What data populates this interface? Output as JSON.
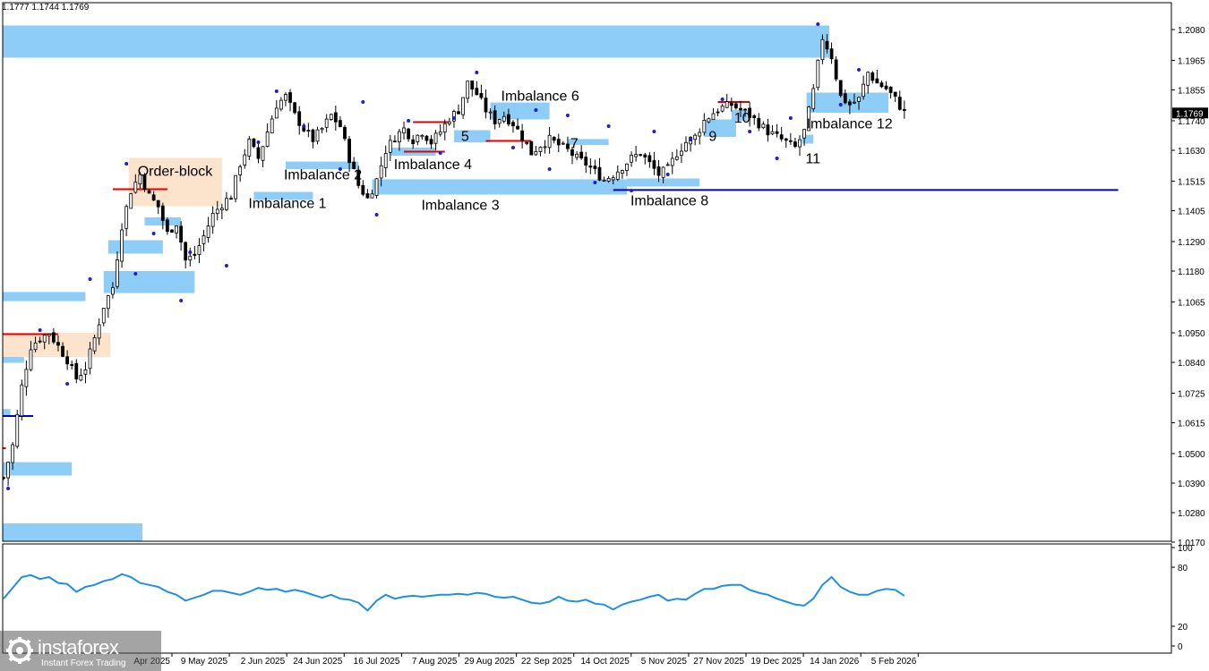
{
  "header": {
    "ohlc": "1.1777 1.1744 1.1769"
  },
  "colors": {
    "imbalance": "#8ecdf8",
    "order_block": "#fbe3cc",
    "candle": "#000000",
    "fractal_up": "#1d1dd8",
    "level_red": "#e00000",
    "level_blue": "#0000c8",
    "rsi": "#1e90e0",
    "price_tag_bg": "#000000",
    "grid_frame": "#000000"
  },
  "chart_data": [
    {
      "type": "candlestick",
      "title": "",
      "price_axis": {
        "ticks": [
          "1.2080",
          "1.1965",
          "1.1855",
          "1.1740",
          "1.1630",
          "1.1515",
          "1.1405",
          "1.1290",
          "1.1180",
          "1.1065",
          "1.0950",
          "1.0840",
          "1.0725",
          "1.0615",
          "1.0500",
          "1.0390",
          "1.0280",
          "1.0170"
        ],
        "ylim": [
          1.016,
          1.2155
        ],
        "current_price": "1.1769"
      },
      "x_axis": {
        "ticks": [
          "Apr 2025",
          "9 May 2025",
          "2 Jun 2025",
          "24 Jun 2025",
          "16 Jul 2025",
          "7 Aug 2025",
          "29 Aug 2025",
          "22 Sep 2025",
          "14 Oct 2025",
          "5 Nov 2025",
          "27 Nov 2025",
          "19 Dec 2025",
          "14 Jan 2026",
          "5 Feb 2026"
        ]
      },
      "close_path": [
        [
          0,
          1.041
        ],
        [
          2,
          1.053
        ],
        [
          4,
          1.075
        ],
        [
          6,
          1.09
        ],
        [
          8,
          1.093
        ],
        [
          10,
          1.095
        ],
        [
          12,
          1.09
        ],
        [
          14,
          1.085
        ],
        [
          16,
          1.078
        ],
        [
          18,
          1.082
        ],
        [
          20,
          1.093
        ],
        [
          22,
          1.105
        ],
        [
          24,
          1.112
        ],
        [
          26,
          1.135
        ],
        [
          28,
          1.148
        ],
        [
          30,
          1.154
        ],
        [
          32,
          1.146
        ],
        [
          34,
          1.142
        ],
        [
          36,
          1.132
        ],
        [
          38,
          1.136
        ],
        [
          40,
          1.122
        ],
        [
          42,
          1.124
        ],
        [
          44,
          1.131
        ],
        [
          46,
          1.139
        ],
        [
          48,
          1.143
        ],
        [
          50,
          1.146
        ],
        [
          52,
          1.158
        ],
        [
          54,
          1.166
        ],
        [
          56,
          1.16
        ],
        [
          58,
          1.17
        ],
        [
          60,
          1.18
        ],
        [
          62,
          1.183
        ],
        [
          64,
          1.176
        ],
        [
          66,
          1.171
        ],
        [
          68,
          1.167
        ],
        [
          70,
          1.171
        ],
        [
          72,
          1.176
        ],
        [
          74,
          1.172
        ],
        [
          76,
          1.16
        ],
        [
          78,
          1.15
        ],
        [
          80,
          1.145
        ],
        [
          82,
          1.152
        ],
        [
          84,
          1.163
        ],
        [
          86,
          1.168
        ],
        [
          88,
          1.171
        ],
        [
          90,
          1.167
        ],
        [
          92,
          1.17
        ],
        [
          94,
          1.166
        ],
        [
          96,
          1.17
        ],
        [
          98,
          1.175
        ],
        [
          100,
          1.178
        ],
        [
          102,
          1.188
        ],
        [
          104,
          1.184
        ],
        [
          106,
          1.178
        ],
        [
          108,
          1.174
        ],
        [
          110,
          1.176
        ],
        [
          112,
          1.173
        ],
        [
          114,
          1.168
        ],
        [
          116,
          1.162
        ],
        [
          118,
          1.165
        ],
        [
          120,
          1.167
        ],
        [
          122,
          1.165
        ],
        [
          124,
          1.163
        ],
        [
          126,
          1.16
        ],
        [
          128,
          1.158
        ],
        [
          130,
          1.155
        ],
        [
          132,
          1.152
        ],
        [
          134,
          1.154
        ],
        [
          136,
          1.157
        ],
        [
          138,
          1.16
        ],
        [
          140,
          1.162
        ],
        [
          142,
          1.158
        ],
        [
          144,
          1.154
        ],
        [
          146,
          1.156
        ],
        [
          148,
          1.162
        ],
        [
          150,
          1.166
        ],
        [
          152,
          1.168
        ],
        [
          154,
          1.174
        ],
        [
          156,
          1.177
        ],
        [
          158,
          1.179
        ],
        [
          160,
          1.18
        ],
        [
          162,
          1.178
        ],
        [
          164,
          1.176
        ],
        [
          166,
          1.173
        ],
        [
          168,
          1.17
        ],
        [
          170,
          1.168
        ],
        [
          172,
          1.166
        ],
        [
          174,
          1.164
        ],
        [
          176,
          1.17
        ],
        [
          178,
          1.185
        ],
        [
          180,
          1.205
        ],
        [
          182,
          1.198
        ],
        [
          184,
          1.183
        ],
        [
          186,
          1.18
        ],
        [
          188,
          1.182
        ],
        [
          190,
          1.192
        ],
        [
          192,
          1.188
        ],
        [
          194,
          1.186
        ],
        [
          196,
          1.182
        ],
        [
          198,
          1.177
        ]
      ],
      "zones": [
        {
          "kind": "imbalance",
          "label": "",
          "p_top": 1.2095,
          "p_bot": 1.1975,
          "d0": -2,
          "d1": 181.5
        },
        {
          "kind": "imbalance",
          "label": "",
          "p_top": 1.024,
          "p_bot": 1.013,
          "d0": -2,
          "d1": 30.5
        },
        {
          "kind": "imbalance",
          "label": "",
          "p_top": 1.0468,
          "p_bot": 1.0418,
          "d0": -2,
          "d1": 15
        },
        {
          "kind": "imbalance",
          "label": "",
          "p_top": 1.0666,
          "p_bot": 1.0642,
          "d0": -2,
          "d1": 1.5
        },
        {
          "kind": "imbalance",
          "label": "",
          "p_top": 1.0882,
          "p_bot": 1.0838,
          "d0": -2,
          "d1": 4.5
        },
        {
          "kind": "imbalance",
          "label": "",
          "p_top": 1.1102,
          "p_bot": 1.1068,
          "d0": -2,
          "d1": 18
        },
        {
          "kind": "imbalance",
          "label": "",
          "p_top": 1.118,
          "p_bot": 1.1098,
          "d0": 22,
          "d1": 42
        },
        {
          "kind": "imbalance",
          "label": "",
          "p_top": 1.1295,
          "p_bot": 1.1245,
          "d0": 23,
          "d1": 35
        },
        {
          "kind": "imbalance",
          "label": "",
          "p_top": 1.138,
          "p_bot": 1.135,
          "d0": 31,
          "d1": 39
        },
        {
          "kind": "order_block",
          "label": "",
          "p_top": 1.095,
          "p_bot": 1.086,
          "d0": -2,
          "d1": 23.5
        },
        {
          "kind": "order_block",
          "label": "Order-block",
          "p_top": 1.1602,
          "p_bot": 1.1422,
          "d0": 27.5,
          "d1": 48
        }
      ],
      "labeled_zones": [
        {
          "kind": "imbalance",
          "label": "Imbalance 1",
          "p_top": 1.1475,
          "p_bot": 1.1445,
          "d0": 55,
          "d1": 68
        },
        {
          "kind": "imbalance",
          "label": "Imbalance 2",
          "p_top": 1.1588,
          "p_bot": 1.156,
          "d0": 62,
          "d1": 78
        },
        {
          "kind": "imbalance",
          "label": "Imbalance 3",
          "p_top": 1.1522,
          "p_bot": 1.1465,
          "d0": 81,
          "d1": 137
        },
        {
          "kind": "imbalance",
          "label": "Imbalance 4",
          "p_top": 1.164,
          "p_bot": 1.161,
          "d0": 85,
          "d1": 95
        },
        {
          "kind": "imbalance",
          "label": "5",
          "p_top": 1.1705,
          "p_bot": 1.166,
          "d0": 99,
          "d1": 107
        },
        {
          "kind": "imbalance",
          "label": "Imbalance 6",
          "p_top": 1.1808,
          "p_bot": 1.1745,
          "d0": 107,
          "d1": 120
        },
        {
          "kind": "imbalance",
          "label": "7",
          "p_top": 1.1672,
          "p_bot": 1.165,
          "d0": 124,
          "d1": 133
        },
        {
          "kind": "imbalance",
          "label": "Imbalance 8",
          "p_top": 1.1525,
          "p_bot": 1.1495,
          "d0": 137,
          "d1": 153
        },
        {
          "kind": "imbalance",
          "label": "9",
          "p_top": 1.1745,
          "p_bot": 1.168,
          "d0": 154,
          "d1": 161
        },
        {
          "kind": "imbalance",
          "label": "10",
          "p_top": 1.178,
          "p_bot": 1.174,
          "d0": 160,
          "d1": 163.5
        },
        {
          "kind": "imbalance",
          "label": "11",
          "p_top": 1.1688,
          "p_bot": 1.1655,
          "d0": 175.5,
          "d1": 178
        },
        {
          "kind": "imbalance",
          "label": "Imbalance 12",
          "p_top": 1.1845,
          "p_bot": 1.177,
          "d0": 176.5,
          "d1": 194.5
        }
      ],
      "levels": [
        {
          "color": "red",
          "price": 1.0945,
          "d0": -2,
          "d1": 12
        },
        {
          "color": "red",
          "price": 1.1485,
          "d0": 24,
          "d1": 36
        },
        {
          "color": "red",
          "price": 1.1735,
          "d0": 90,
          "d1": 98
        },
        {
          "color": "red",
          "price": 1.1625,
          "d0": 88,
          "d1": 97
        },
        {
          "color": "red",
          "price": 1.1665,
          "d0": 106,
          "d1": 116
        },
        {
          "color": "red",
          "price": 1.181,
          "d0": 157,
          "d1": 164
        },
        {
          "color": "red",
          "price": 1.052,
          "d0": -2,
          "d1": 0.5
        },
        {
          "color": "blue",
          "price": 1.064,
          "d0": -2,
          "d1": 6.5
        },
        {
          "color": "blue",
          "price": 1.1482,
          "d0": 134,
          "d1": 245
        }
      ],
      "fractal_points": [
        [
          1,
          1.037
        ],
        [
          8,
          1.096
        ],
        [
          14,
          1.076
        ],
        [
          19,
          1.115
        ],
        [
          27,
          1.158
        ],
        [
          29,
          1.117
        ],
        [
          33,
          1.132
        ],
        [
          39,
          1.107
        ],
        [
          41,
          1.125
        ],
        [
          49,
          1.12
        ],
        [
          56,
          1.166
        ],
        [
          60,
          1.185
        ],
        [
          66,
          1.172
        ],
        [
          74,
          1.156
        ],
        [
          79,
          1.181
        ],
        [
          82,
          1.139
        ],
        [
          89,
          1.174
        ],
        [
          96,
          1.162
        ],
        [
          99,
          1.175
        ],
        [
          104,
          1.192
        ],
        [
          112,
          1.164
        ],
        [
          117,
          1.178
        ],
        [
          120,
          1.156
        ],
        [
          124,
          1.176
        ],
        [
          130,
          1.151
        ],
        [
          133,
          1.172
        ],
        [
          138,
          1.148
        ],
        [
          143,
          1.17
        ],
        [
          146,
          1.154
        ],
        [
          151,
          1.167
        ],
        [
          158,
          1.182
        ],
        [
          164,
          1.17
        ],
        [
          170,
          1.16
        ],
        [
          173,
          1.175
        ],
        [
          179,
          1.21
        ],
        [
          184,
          1.18
        ],
        [
          188,
          1.193
        ]
      ]
    },
    {
      "type": "line",
      "title": "",
      "y_ticks": [
        "100",
        "80",
        "20",
        "0"
      ],
      "ylim": [
        0,
        100
      ],
      "series": [
        {
          "name": "",
          "x": [
            0,
            4,
            6,
            8,
            10,
            12,
            14,
            16,
            18,
            20,
            22,
            24,
            26,
            28,
            30,
            32,
            34,
            36,
            38,
            40,
            42,
            44,
            46,
            48,
            50,
            52,
            54,
            56,
            58,
            60,
            62,
            64,
            66,
            68,
            70,
            72,
            74,
            76,
            78,
            80,
            82,
            84,
            86,
            88,
            90,
            92,
            94,
            96,
            98,
            100,
            102,
            104,
            106,
            108,
            110,
            112,
            114,
            116,
            118,
            120,
            122,
            124,
            126,
            128,
            130,
            132,
            134,
            136,
            138,
            140,
            142,
            144,
            146,
            148,
            150,
            152,
            154,
            156,
            158,
            160,
            162,
            164,
            166,
            168,
            170,
            172,
            174,
            176,
            178,
            180,
            182,
            184,
            186,
            188,
            190,
            192,
            194,
            196,
            198
          ],
          "values": [
            48,
            70,
            72,
            68,
            70,
            64,
            63,
            55,
            60,
            62,
            66,
            68,
            73,
            70,
            64,
            62,
            60,
            55,
            52,
            46,
            49,
            52,
            56,
            56,
            54,
            52,
            55,
            59,
            57,
            58,
            55,
            57,
            55,
            52,
            49,
            52,
            48,
            47,
            44,
            36,
            46,
            52,
            48,
            50,
            51,
            50,
            51,
            52,
            52,
            53,
            52,
            54,
            53,
            50,
            49,
            50,
            47,
            44,
            43,
            45,
            50,
            46,
            45,
            47,
            43,
            42,
            37,
            42,
            45,
            47,
            50,
            52,
            46,
            48,
            47,
            53,
            58,
            58,
            61,
            62,
            62,
            57,
            54,
            52,
            48,
            45,
            42,
            41,
            48,
            62,
            70,
            60,
            55,
            52,
            52,
            56,
            58,
            57,
            51
          ]
        }
      ]
    }
  ]
}
